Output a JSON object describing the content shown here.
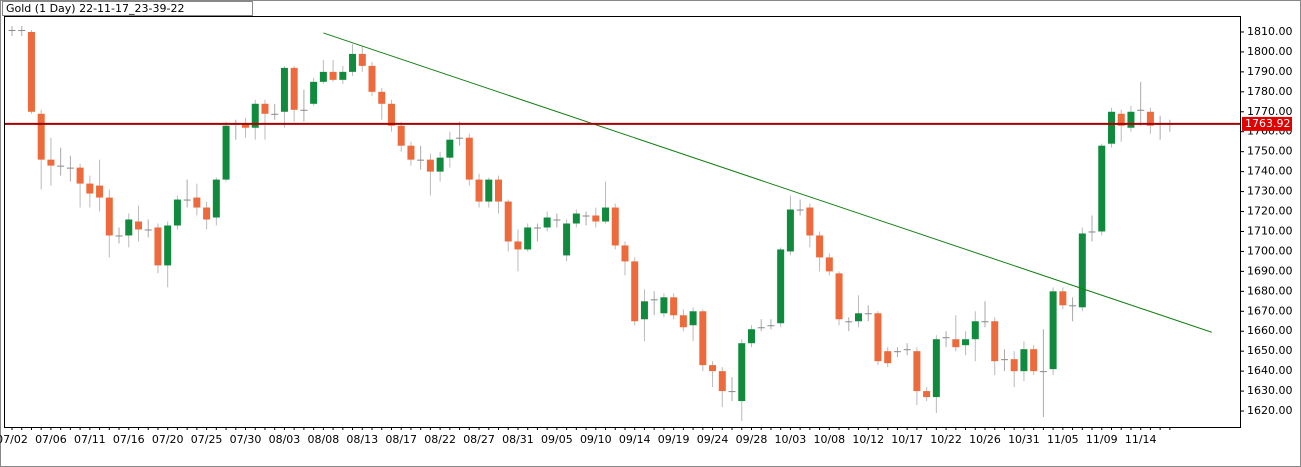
{
  "chart_data": {
    "type": "candlestick",
    "title": "Gold (1 Day) 22-11-17_23-39-22",
    "categories": [
      "07/02",
      null,
      null,
      null,
      "07/06",
      null,
      null,
      null,
      "07/11",
      null,
      null,
      null,
      "07/16",
      null,
      null,
      null,
      "07/20",
      null,
      null,
      null,
      "07/25",
      null,
      null,
      null,
      "07/30",
      null,
      null,
      null,
      "08/03",
      null,
      null,
      null,
      "08/08",
      null,
      null,
      null,
      "08/13",
      null,
      null,
      null,
      "08/17",
      null,
      null,
      null,
      "08/22",
      null,
      null,
      null,
      "08/27",
      null,
      null,
      null,
      "08/31",
      null,
      null,
      null,
      "09/05",
      null,
      null,
      null,
      "09/10",
      null,
      null,
      null,
      "09/14",
      null,
      null,
      null,
      "09/19",
      null,
      null,
      null,
      "09/24",
      null,
      null,
      null,
      "09/28",
      null,
      null,
      null,
      "10/03",
      null,
      null,
      null,
      "10/08",
      null,
      null,
      null,
      "10/12",
      null,
      null,
      null,
      "10/17",
      null,
      null,
      null,
      "10/22",
      null,
      null,
      null,
      "10/26",
      null,
      null,
      null,
      "10/31",
      null,
      null,
      null,
      "11/05",
      null,
      null,
      null,
      "11/09",
      null,
      null,
      null,
      "11/14",
      null,
      null,
      null
    ],
    "open": [
      1811,
      1811,
      1810,
      1769,
      1746,
      1743,
      1742,
      1742,
      1734,
      1733,
      1727,
      1708,
      1708,
      1715,
      1711,
      1712,
      1693,
      1713,
      1726,
      1727,
      1722,
      1717,
      1736,
      1764,
      1764,
      1762,
      1774,
      1769,
      1770,
      1792,
      1771,
      1774,
      1785,
      1790,
      1786,
      1790,
      1799,
      1793,
      1780,
      1774,
      1763,
      1753,
      1746,
      1746,
      1740,
      1747,
      1757,
      1757,
      1736,
      1725,
      1736,
      1725,
      1705,
      1701,
      1712,
      1712,
      1716,
      1698,
      1714,
      1718,
      1718,
      1715,
      1722,
      1703,
      1695,
      1666,
      1676,
      1669,
      1677,
      1668,
      1663,
      1670,
      1643,
      1640,
      1630,
      1625,
      1654,
      1662,
      1663,
      1664,
      1700,
      1721,
      1722,
      1708,
      1697,
      1689,
      1665,
      1665,
      1669,
      1669,
      1650,
      1650,
      1651,
      1650,
      1630,
      1627,
      1657,
      1656,
      1653,
      1656,
      1665,
      1665,
      1646,
      1646,
      1640,
      1651,
      1640,
      1641,
      1680,
      1673,
      1672,
      1710,
      1710,
      1754,
      1769,
      1762,
      1771,
      1770,
      1764,
      1764
    ],
    "high": [
      1813,
      1813,
      1811,
      1771,
      1757,
      1752,
      1748,
      1744,
      1738,
      1746,
      1731,
      1712,
      1719,
      1723,
      1716,
      1714,
      1715,
      1728,
      1736,
      1734,
      1725,
      1737,
      1765,
      1766,
      1767,
      1776,
      1776,
      1774,
      1793,
      1793,
      1781,
      1787,
      1796,
      1796,
      1793,
      1804,
      1803,
      1795,
      1782,
      1776,
      1765,
      1755,
      1753,
      1749,
      1750,
      1760,
      1765,
      1759,
      1739,
      1737,
      1738,
      1726,
      1711,
      1714,
      1714,
      1720,
      1719,
      1716,
      1721,
      1720,
      1722,
      1735,
      1724,
      1705,
      1697,
      1681,
      1680,
      1679,
      1679,
      1671,
      1672,
      1671,
      1645,
      1642,
      1637,
      1656,
      1663,
      1666,
      1666,
      1702,
      1728,
      1726,
      1724,
      1710,
      1699,
      1690,
      1667,
      1678,
      1673,
      1670,
      1652,
      1652,
      1654,
      1652,
      1632,
      1658,
      1660,
      1668,
      1660,
      1670,
      1675,
      1667,
      1651,
      1650,
      1655,
      1653,
      1661,
      1682,
      1682,
      1677,
      1712,
      1718,
      1754,
      1772,
      1771,
      1773,
      1785,
      1772,
      1768,
      1766
    ],
    "low": [
      1808,
      1808,
      1769,
      1731,
      1733,
      1738,
      1735,
      1722,
      1722,
      1720,
      1697,
      1704,
      1702,
      1705,
      1707,
      1689,
      1682,
      1711,
      1722,
      1718,
      1711,
      1713,
      1735,
      1756,
      1757,
      1756,
      1756,
      1766,
      1762,
      1765,
      1765,
      1773,
      1784,
      1785,
      1784,
      1788,
      1790,
      1778,
      1766,
      1760,
      1750,
      1743,
      1741,
      1728,
      1735,
      1742,
      1753,
      1733,
      1722,
      1722,
      1719,
      1700,
      1690,
      1700,
      1705,
      1710,
      1712,
      1695,
      1712,
      1713,
      1712,
      1714,
      1701,
      1688,
      1663,
      1655,
      1668,
      1667,
      1666,
      1660,
      1655,
      1640,
      1632,
      1622,
      1625,
      1615,
      1652,
      1660,
      1661,
      1662,
      1698,
      1718,
      1702,
      1690,
      1688,
      1663,
      1660,
      1662,
      1665,
      1643,
      1642,
      1647,
      1648,
      1623,
      1625,
      1619,
      1652,
      1650,
      1648,
      1645,
      1662,
      1638,
      1640,
      1632,
      1635,
      1638,
      1617,
      1638,
      1671,
      1665,
      1670,
      1705,
      1708,
      1752,
      1755,
      1760,
      1763,
      1759,
      1756,
      1760
    ],
    "close": [
      1811,
      1811,
      1770,
      1746,
      1743,
      1743,
      1742,
      1734,
      1729,
      1727,
      1708,
      1708,
      1716,
      1711,
      1711,
      1693,
      1713,
      1726,
      1726,
      1722,
      1716,
      1736,
      1763,
      1764,
      1762,
      1774,
      1769,
      1769,
      1792,
      1771,
      1771,
      1785,
      1790,
      1786,
      1790,
      1799,
      1793,
      1780,
      1774,
      1763,
      1753,
      1746,
      1746,
      1740,
      1747,
      1756,
      1757,
      1736,
      1725,
      1736,
      1725,
      1705,
      1701,
      1712,
      1712,
      1717,
      1716,
      1714,
      1719,
      1718,
      1715,
      1722,
      1703,
      1695,
      1665,
      1675,
      1676,
      1677,
      1668,
      1662,
      1670,
      1643,
      1640,
      1630,
      1630,
      1654,
      1661,
      1662,
      1663,
      1701,
      1721,
      1721,
      1708,
      1697,
      1690,
      1666,
      1665,
      1669,
      1669,
      1645,
      1644,
      1650,
      1651,
      1630,
      1627,
      1656,
      1657,
      1652,
      1656,
      1665,
      1665,
      1645,
      1646,
      1640,
      1651,
      1640,
      1640,
      1680,
      1673,
      1673,
      1709,
      1710,
      1753,
      1770,
      1763,
      1770,
      1771,
      1763,
      1764,
      1764
    ],
    "up_color": "#108a3c",
    "down_color": "#ec6a3c",
    "price_line": 1763.92,
    "price_line_color": "#a80000",
    "trendline": {
      "x": [
        32,
        123.3
      ],
      "y": [
        1809.5,
        1659.5
      ],
      "color": "#138013"
    },
    "ylim": [
      1612,
      1817.5
    ],
    "yticks": [
      {
        "value": 1620,
        "label": "1620.00"
      },
      {
        "value": 1630,
        "label": "1630.00"
      },
      {
        "value": 1640,
        "label": "1640.00"
      },
      {
        "value": 1650,
        "label": "1650.00"
      },
      {
        "value": 1660,
        "label": "1660.00"
      },
      {
        "value": 1670,
        "label": "1670.00"
      },
      {
        "value": 1680,
        "label": "1680.00"
      },
      {
        "value": 1690,
        "label": "1690.00"
      },
      {
        "value": 1700,
        "label": "1700.00"
      },
      {
        "value": 1710,
        "label": "1710.00"
      },
      {
        "value": 1720,
        "label": "1720.00"
      },
      {
        "value": 1730,
        "label": "1730.00"
      },
      {
        "value": 1740,
        "label": "1740.00"
      },
      {
        "value": 1750,
        "label": "1750.00"
      },
      {
        "value": 1760,
        "label": "1760.00"
      },
      {
        "value": 1770,
        "label": "1770.00"
      },
      {
        "value": 1780,
        "label": "1780.00"
      },
      {
        "value": 1790,
        "label": "1790.00"
      },
      {
        "value": 1800,
        "label": "1800.00"
      },
      {
        "value": 1810,
        "label": "1810.00"
      }
    ]
  }
}
